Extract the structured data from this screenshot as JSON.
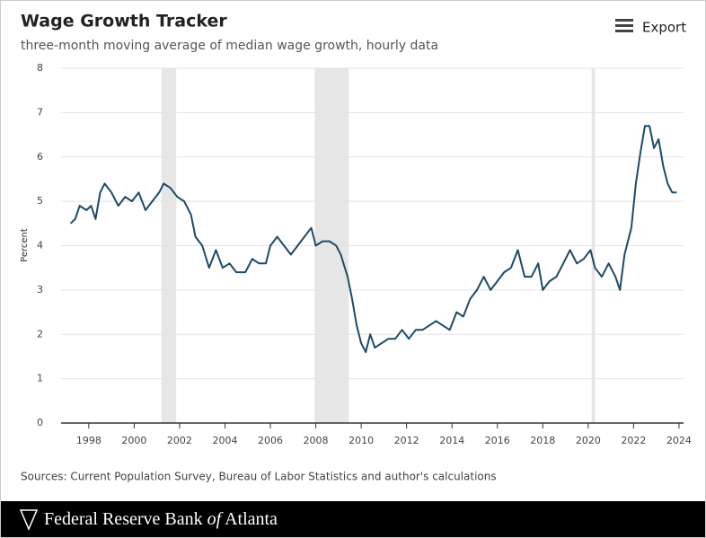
{
  "header": {
    "export": "Export"
  },
  "chart_data": {
    "type": "line",
    "title": "Wage Growth Tracker",
    "subtitle": "three-month moving average of median wage growth, hourly data",
    "y_label": "Percent",
    "source": "Sources: Current Population Survey, Bureau of Labor Statistics and author's calculations",
    "x": [
      1997.2,
      1997.4,
      1997.6,
      1997.9,
      1998.1,
      1998.3,
      1998.5,
      1998.7,
      1999.0,
      1999.3,
      1999.6,
      1999.9,
      2000.2,
      2000.5,
      2000.8,
      2001.1,
      2001.3,
      2001.6,
      2001.9,
      2002.2,
      2002.5,
      2002.7,
      2003.0,
      2003.3,
      2003.6,
      2003.9,
      2004.2,
      2004.5,
      2004.9,
      2005.2,
      2005.5,
      2005.8,
      2006.0,
      2006.3,
      2006.6,
      2006.9,
      2007.2,
      2007.5,
      2007.8,
      2008.0,
      2008.3,
      2008.6,
      2008.9,
      2009.1,
      2009.4,
      2009.6,
      2009.8,
      2010.0,
      2010.2,
      2010.4,
      2010.6,
      2010.9,
      2011.2,
      2011.5,
      2011.8,
      2012.1,
      2012.4,
      2012.7,
      2013.0,
      2013.3,
      2013.6,
      2013.9,
      2014.2,
      2014.5,
      2014.8,
      2015.1,
      2015.4,
      2015.7,
      2016.0,
      2016.3,
      2016.6,
      2016.9,
      2017.2,
      2017.5,
      2017.8,
      2018.0,
      2018.3,
      2018.6,
      2018.9,
      2019.2,
      2019.5,
      2019.8,
      2020.1,
      2020.3,
      2020.6,
      2020.9,
      2021.2,
      2021.4,
      2021.6,
      2021.9,
      2022.1,
      2022.3,
      2022.5,
      2022.7,
      2022.9,
      2023.1,
      2023.3,
      2023.5,
      2023.7,
      2023.9
    ],
    "series": [
      {
        "color": "#1d4a66",
        "values": [
          4.5,
          4.6,
          4.9,
          4.8,
          4.9,
          4.6,
          5.2,
          5.4,
          5.2,
          4.9,
          5.1,
          5.0,
          5.2,
          4.8,
          5.0,
          5.2,
          5.4,
          5.3,
          5.1,
          5.0,
          4.7,
          4.2,
          4.0,
          3.5,
          3.9,
          3.5,
          3.6,
          3.4,
          3.4,
          3.7,
          3.6,
          3.6,
          4.0,
          4.2,
          4.0,
          3.8,
          4.0,
          4.2,
          4.4,
          4.0,
          4.1,
          4.1,
          4.0,
          3.8,
          3.3,
          2.8,
          2.2,
          1.8,
          1.6,
          2.0,
          1.7,
          1.8,
          1.9,
          1.9,
          2.1,
          1.9,
          2.1,
          2.1,
          2.2,
          2.3,
          2.2,
          2.1,
          2.5,
          2.4,
          2.8,
          3.0,
          3.3,
          3.0,
          3.2,
          3.4,
          3.5,
          3.9,
          3.3,
          3.3,
          3.6,
          3.0,
          3.2,
          3.3,
          3.6,
          3.9,
          3.6,
          3.7,
          3.9,
          3.5,
          3.3,
          3.6,
          3.3,
          3.0,
          3.8,
          4.4,
          5.4,
          6.1,
          6.7,
          6.7,
          6.2,
          6.4,
          5.8,
          5.4,
          5.2,
          5.2
        ]
      }
    ],
    "recessions": [
      [
        2001.2,
        2001.85
      ],
      [
        2007.95,
        2009.45
      ],
      [
        2020.15,
        2020.3
      ]
    ],
    "recession_color": "#e6e6e6",
    "xlim": [
      1996.78,
      2024.2
    ],
    "xticks": [
      1998,
      2000,
      2002,
      2004,
      2006,
      2008,
      2010,
      2012,
      2014,
      2016,
      2018,
      2020,
      2022,
      2024
    ],
    "ylim": [
      0,
      8
    ],
    "yticks": [
      0,
      1,
      2,
      3,
      4,
      5,
      6,
      7,
      8
    ],
    "grid": true
  },
  "footer": {
    "pre": "Federal Reserve Bank ",
    "italic": "of",
    "post": " Atlanta"
  }
}
